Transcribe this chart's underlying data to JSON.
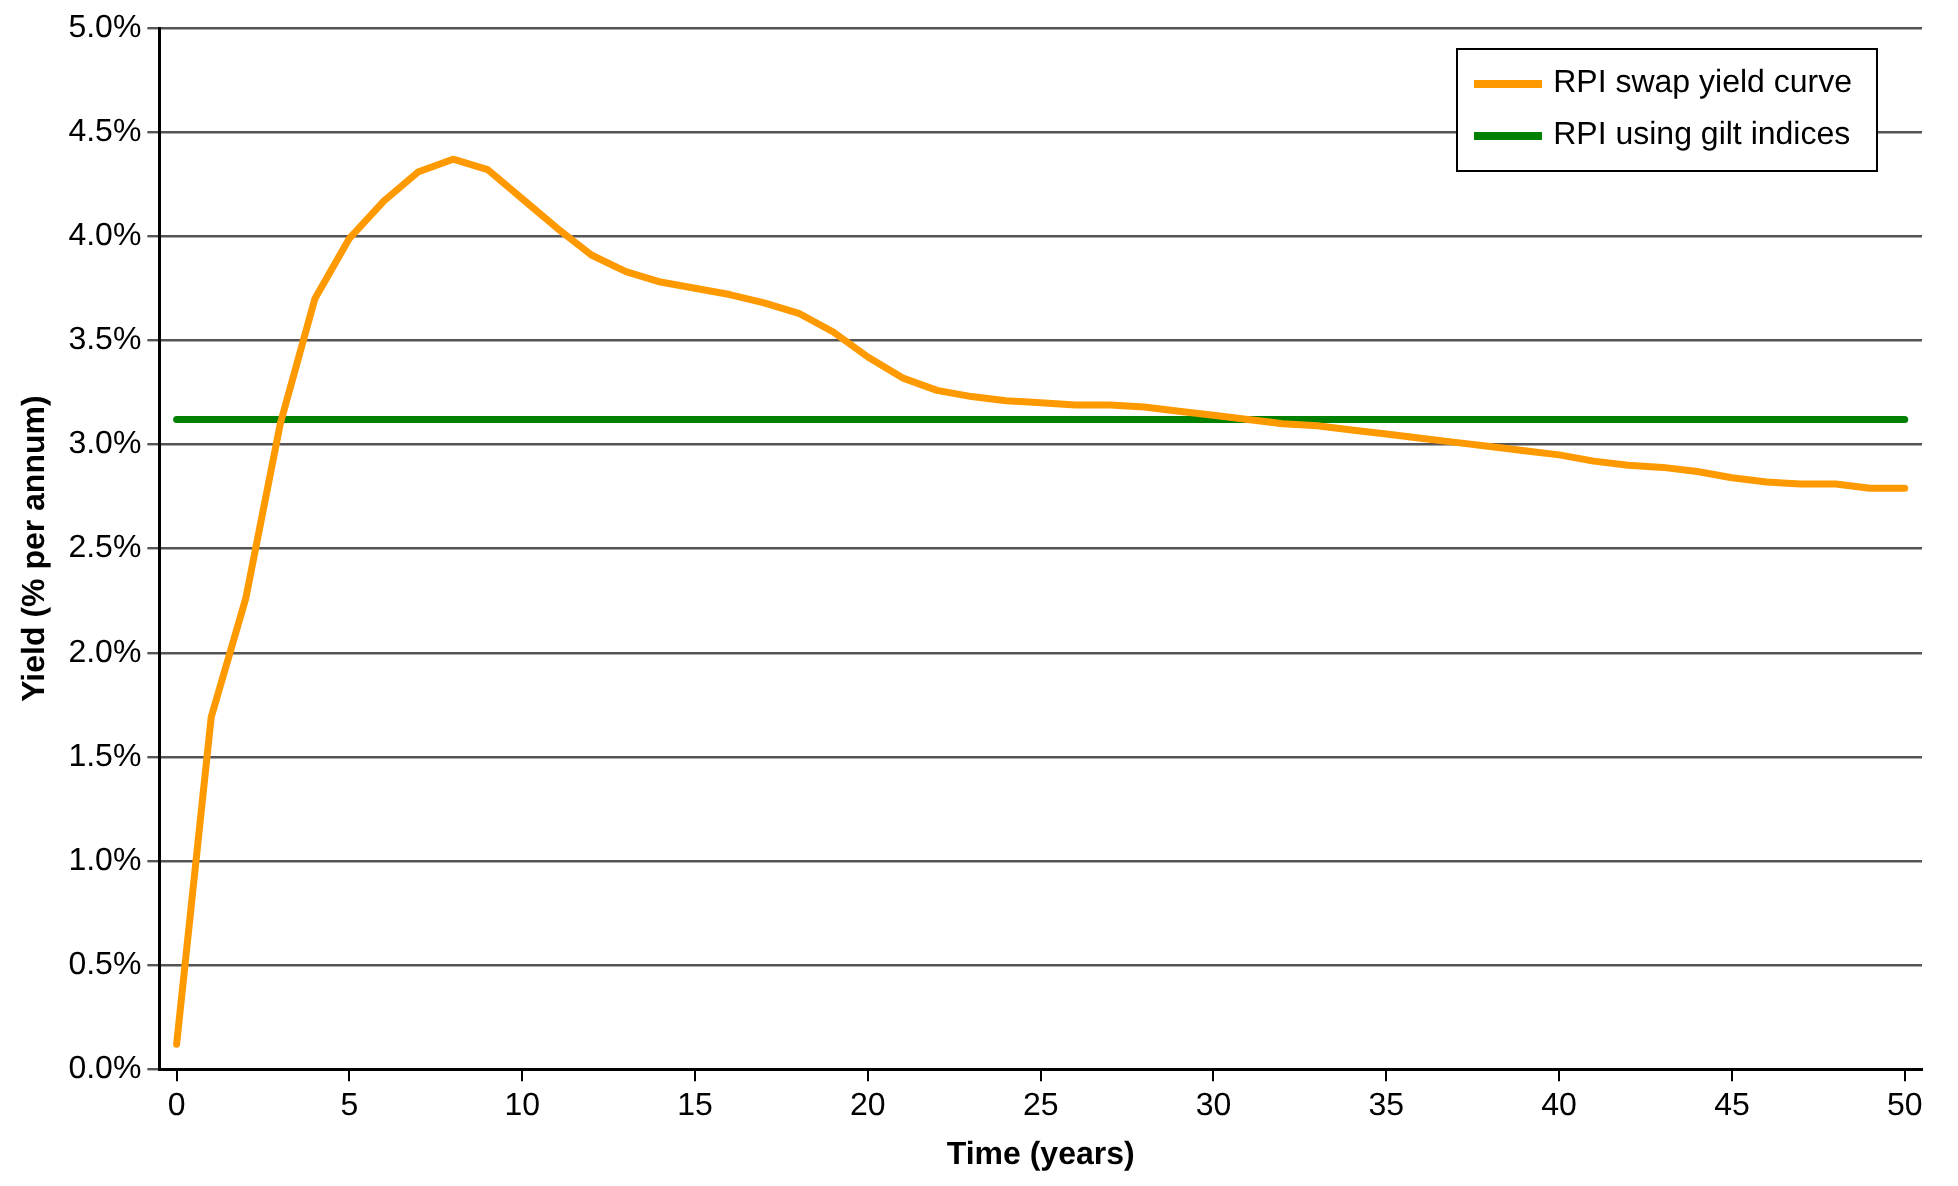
{
  "chart_data": {
    "type": "line",
    "xlabel": "Time (years)",
    "ylabel": "Yield (% per annum)",
    "xlim": [
      -0.5,
      50.5
    ],
    "xticks": [
      0,
      5,
      10,
      15,
      20,
      25,
      30,
      35,
      40,
      45,
      50
    ],
    "ylim": [
      0,
      5
    ],
    "yticks": [
      {
        "value": 0,
        "label": "0.0%"
      },
      {
        "value": 0.5,
        "label": "0.5%"
      },
      {
        "value": 1,
        "label": "1.0%"
      },
      {
        "value": 1.5,
        "label": "1.5%"
      },
      {
        "value": 2,
        "label": "2.0%"
      },
      {
        "value": 2.5,
        "label": "2.5%"
      },
      {
        "value": 3,
        "label": "3.0%"
      },
      {
        "value": 3.5,
        "label": "3.5%"
      },
      {
        "value": 4,
        "label": "4.0%"
      },
      {
        "value": 4.5,
        "label": "4.5%"
      },
      {
        "value": 5,
        "label": "5.0%"
      }
    ],
    "grid": "y",
    "legend": "top right",
    "marker": "none",
    "line_style": "solid",
    "x": [
      0,
      1,
      2,
      3,
      4,
      5,
      6,
      7,
      8,
      9,
      10,
      11,
      12,
      13,
      14,
      15,
      16,
      17,
      18,
      19,
      20,
      21,
      22,
      23,
      24,
      25,
      26,
      27,
      28,
      29,
      30,
      31,
      32,
      33,
      34,
      35,
      36,
      37,
      38,
      39,
      40,
      41,
      42,
      43,
      44,
      45,
      46,
      47,
      48,
      49,
      50
    ],
    "series": [
      {
        "name": "RPI swap yield curve",
        "color": "#ff9900",
        "values": [
          0.12,
          1.69,
          2.26,
          3.1,
          3.7,
          3.99,
          4.17,
          4.31,
          4.37,
          4.32,
          4.18,
          4.04,
          3.91,
          3.83,
          3.78,
          3.75,
          3.72,
          3.68,
          3.63,
          3.54,
          3.42,
          3.32,
          3.26,
          3.23,
          3.21,
          3.2,
          3.19,
          3.19,
          3.18,
          3.16,
          3.14,
          3.12,
          3.1,
          3.09,
          3.07,
          3.05,
          3.03,
          3.01,
          2.99,
          2.97,
          2.95,
          2.92,
          2.9,
          2.89,
          2.87,
          2.84,
          2.82,
          2.81,
          2.81,
          2.79,
          2.79
        ]
      },
      {
        "name": "RPI using gilt indices",
        "color": "#008000",
        "x": [
          0,
          50
        ],
        "values": [
          3.12,
          3.12
        ]
      }
    ]
  }
}
